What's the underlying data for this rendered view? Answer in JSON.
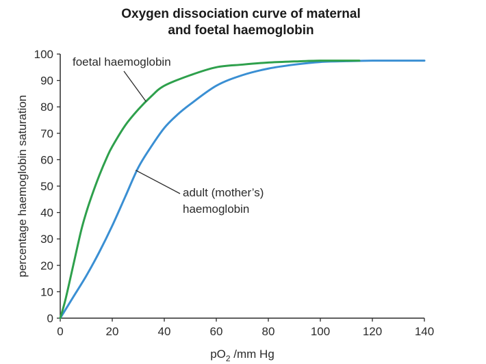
{
  "chart_data": {
    "type": "line",
    "title": [
      "Oxygen dissociation curve of maternal",
      "and foetal haemoglobin"
    ],
    "xlabel": {
      "prefix": "pO",
      "sub": "2",
      "suffix": " /mm Hg"
    },
    "ylabel": "percentage haemoglobin saturation",
    "xlim": [
      0,
      140
    ],
    "ylim": [
      0,
      100
    ],
    "xticks": [
      0,
      20,
      40,
      60,
      80,
      100,
      120,
      140
    ],
    "yticks": [
      0,
      10,
      20,
      30,
      40,
      50,
      60,
      70,
      80,
      90,
      100
    ],
    "grid": false,
    "series": [
      {
        "key": "foetal",
        "color": "#2ea04c",
        "x": [
          0,
          2,
          5,
          8,
          10,
          12,
          15,
          18,
          20,
          25,
          30,
          35,
          40,
          50,
          60,
          70,
          80,
          90,
          100,
          110,
          115
        ],
        "y": [
          0,
          7,
          20,
          33,
          40,
          46,
          54,
          61,
          65,
          73,
          79,
          84,
          88,
          92,
          95,
          96,
          96.8,
          97.2,
          97.5,
          97.5,
          97.5
        ]
      },
      {
        "key": "adult",
        "color": "#3a8fd3",
        "x": [
          0,
          5,
          10,
          15,
          20,
          25,
          30,
          35,
          40,
          45,
          50,
          60,
          70,
          80,
          90,
          100,
          110,
          120,
          130,
          140
        ],
        "y": [
          0,
          8,
          16,
          25,
          35,
          46,
          57,
          65,
          72,
          77,
          81,
          88,
          92,
          94.5,
          96,
          97,
          97.3,
          97.5,
          97.5,
          97.5
        ]
      }
    ],
    "annotations": [
      {
        "key": "foetal",
        "lines": [
          "foetal haemoglobin"
        ],
        "point": [
          33,
          82
        ]
      },
      {
        "key": "adult",
        "lines": [
          "adult (mother’s)",
          "haemoglobin"
        ],
        "point": [
          29,
          56
        ]
      }
    ]
  }
}
